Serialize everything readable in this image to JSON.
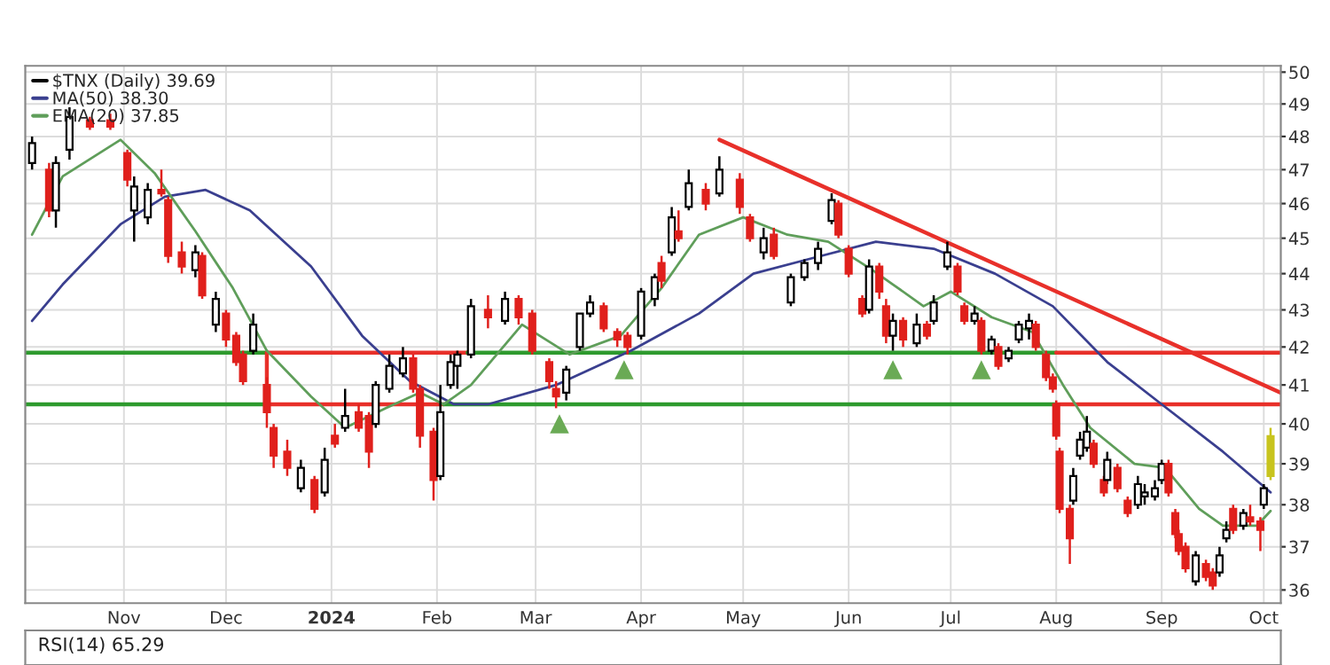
{
  "chart_data": [
    {
      "type": "candlestick",
      "log": "y",
      "grid": true,
      "legend": "top left",
      "xlim": [
        "2023-10-03",
        "2024-10-06"
      ],
      "ylim": [
        35.7,
        50.2
      ],
      "xticks": [
        {
          "value": "2023-11-01",
          "label": "Nov"
        },
        {
          "value": "2023-12-01",
          "label": "Dec"
        },
        {
          "value": "2024-01-01",
          "label": "2024"
        },
        {
          "value": "2024-02-01",
          "label": "Feb"
        },
        {
          "value": "2024-03-01",
          "label": "Mar"
        },
        {
          "value": "2024-04-01",
          "label": "Apr"
        },
        {
          "value": "2024-05-01",
          "label": "May"
        },
        {
          "value": "2024-06-01",
          "label": "Jun"
        },
        {
          "value": "2024-07-01",
          "label": "Jul"
        },
        {
          "value": "2024-08-01",
          "label": "Aug"
        },
        {
          "value": "2024-09-01",
          "label": "Sep"
        },
        {
          "value": "2024-10-01",
          "label": "Oct"
        }
      ],
      "yticks": [
        36,
        37,
        38,
        39,
        40,
        41,
        42,
        43,
        44,
        45,
        46,
        47,
        48,
        49,
        50
      ],
      "series": [
        {
          "name": "$TNX (Daily) 39.69",
          "type": "candlestick",
          "x": [
            "2023-10-05",
            "2023-10-10",
            "2023-10-12",
            "2023-10-16",
            "2023-10-22",
            "2023-10-28",
            "2023-11-02",
            "2023-11-04",
            "2023-11-08",
            "2023-11-12",
            "2023-11-14",
            "2023-11-18",
            "2023-11-22",
            "2023-11-24",
            "2023-11-28",
            "2023-12-01",
            "2023-12-04",
            "2023-12-06",
            "2023-12-09",
            "2023-12-13",
            "2023-12-15",
            "2023-12-19",
            "2023-12-23",
            "2023-12-27",
            "2023-12-30",
            "2024-01-02",
            "2024-01-05",
            "2024-01-09",
            "2024-01-12",
            "2024-01-14",
            "2024-01-18",
            "2024-01-22",
            "2024-01-25",
            "2024-01-27",
            "2024-01-31",
            "2024-02-02",
            "2024-02-05",
            "2024-02-07",
            "2024-02-11",
            "2024-02-16",
            "2024-02-21",
            "2024-02-25",
            "2024-02-29",
            "2024-03-05",
            "2024-03-07",
            "2024-03-10",
            "2024-03-14",
            "2024-03-17",
            "2024-03-21",
            "2024-03-25",
            "2024-03-28",
            "2024-04-01",
            "2024-04-05",
            "2024-04-07",
            "2024-04-10",
            "2024-04-12",
            "2024-04-15",
            "2024-04-20",
            "2024-04-24",
            "2024-04-30",
            "2024-05-03",
            "2024-05-07",
            "2024-05-10",
            "2024-05-15",
            "2024-05-19",
            "2024-05-23",
            "2024-05-27",
            "2024-05-29",
            "2024-06-01",
            "2024-06-05",
            "2024-06-07",
            "2024-06-10",
            "2024-06-12",
            "2024-06-14",
            "2024-06-17",
            "2024-06-21",
            "2024-06-24",
            "2024-06-26",
            "2024-06-30",
            "2024-07-03",
            "2024-07-05",
            "2024-07-08",
            "2024-07-10",
            "2024-07-13",
            "2024-07-15",
            "2024-07-18",
            "2024-07-21",
            "2024-07-24",
            "2024-07-26",
            "2024-07-29",
            "2024-07-31",
            "2024-08-01",
            "2024-08-02",
            "2024-08-05",
            "2024-08-06",
            "2024-08-08",
            "2024-08-10",
            "2024-08-12",
            "2024-08-15",
            "2024-08-16",
            "2024-08-19",
            "2024-08-22",
            "2024-08-25",
            "2024-08-27",
            "2024-08-30",
            "2024-09-01",
            "2024-09-03",
            "2024-09-05",
            "2024-09-06",
            "2024-09-08",
            "2024-09-11",
            "2024-09-14",
            "2024-09-16",
            "2024-09-18",
            "2024-09-20",
            "2024-09-22",
            "2024-09-25",
            "2024-09-27",
            "2024-09-30",
            "2024-10-01",
            "2024-10-03"
          ],
          "ohlc": [
            [
              47.2,
              48.0,
              47.0,
              47.8
            ],
            [
              47.0,
              47.2,
              45.6,
              45.8
            ],
            [
              45.8,
              47.4,
              45.3,
              47.2
            ],
            [
              47.6,
              48.9,
              47.3,
              48.6
            ],
            [
              48.5,
              48.6,
              48.2,
              48.3
            ],
            [
              48.5,
              48.7,
              48.2,
              48.3
            ],
            [
              47.5,
              47.6,
              46.5,
              46.7
            ],
            [
              45.8,
              46.8,
              44.9,
              46.5
            ],
            [
              45.6,
              46.6,
              45.4,
              46.4
            ],
            [
              46.4,
              47.0,
              46.2,
              46.3
            ],
            [
              46.1,
              46.2,
              44.3,
              44.5
            ],
            [
              44.6,
              44.9,
              44.0,
              44.2
            ],
            [
              44.1,
              44.8,
              43.9,
              44.6
            ],
            [
              44.5,
              44.6,
              43.3,
              43.4
            ],
            [
              42.6,
              43.5,
              42.4,
              43.3
            ],
            [
              42.9,
              43.0,
              42.0,
              42.2
            ],
            [
              42.3,
              42.4,
              41.5,
              41.6
            ],
            [
              41.8,
              41.9,
              41.0,
              41.1
            ],
            [
              41.9,
              42.9,
              41.8,
              42.6
            ],
            [
              41.0,
              41.2,
              39.9,
              40.3
            ],
            [
              39.9,
              40.0,
              38.9,
              39.2
            ],
            [
              39.3,
              39.6,
              38.7,
              38.9
            ],
            [
              38.4,
              39.1,
              38.3,
              38.9
            ],
            [
              38.6,
              38.7,
              37.8,
              37.9
            ],
            [
              38.3,
              39.4,
              38.2,
              39.1
            ],
            [
              39.7,
              40.0,
              39.4,
              39.5
            ],
            [
              39.9,
              40.9,
              39.8,
              40.2
            ],
            [
              40.3,
              40.5,
              39.8,
              39.9
            ],
            [
              40.2,
              40.3,
              38.9,
              39.3
            ],
            [
              40.0,
              41.1,
              39.9,
              41.0
            ],
            [
              40.9,
              41.8,
              40.8,
              41.5
            ],
            [
              41.3,
              42.0,
              41.2,
              41.7
            ],
            [
              41.7,
              41.8,
              40.8,
              40.9
            ],
            [
              40.9,
              41.0,
              39.4,
              39.7
            ],
            [
              39.8,
              39.9,
              38.1,
              38.6
            ],
            [
              38.7,
              41.0,
              38.6,
              40.3
            ],
            [
              41.0,
              41.8,
              40.9,
              41.6
            ],
            [
              41.5,
              41.9,
              40.9,
              41.8
            ],
            [
              41.8,
              43.3,
              41.7,
              43.1
            ],
            [
              43.0,
              43.4,
              42.5,
              42.8
            ],
            [
              42.7,
              43.5,
              42.6,
              43.3
            ],
            [
              43.3,
              43.4,
              42.6,
              42.8
            ],
            [
              42.9,
              43.0,
              41.8,
              41.9
            ],
            [
              41.6,
              41.7,
              40.9,
              41.1
            ],
            [
              40.9,
              41.1,
              40.4,
              40.7
            ],
            [
              40.8,
              41.5,
              40.6,
              41.4
            ],
            [
              42.0,
              42.9,
              41.9,
              42.9
            ],
            [
              42.9,
              43.4,
              42.8,
              43.2
            ],
            [
              43.1,
              43.2,
              42.4,
              42.5
            ],
            [
              42.4,
              42.5,
              42.0,
              42.2
            ],
            [
              42.3,
              42.4,
              41.8,
              42.0
            ],
            [
              42.3,
              43.6,
              42.2,
              43.5
            ],
            [
              43.3,
              44.0,
              43.1,
              43.9
            ],
            [
              44.3,
              44.5,
              43.6,
              43.8
            ],
            [
              44.6,
              45.9,
              44.5,
              45.6
            ],
            [
              45.2,
              45.8,
              44.9,
              45.0
            ],
            [
              45.9,
              47.0,
              45.8,
              46.6
            ],
            [
              46.4,
              46.6,
              45.8,
              46.0
            ],
            [
              46.3,
              47.4,
              46.2,
              47.0
            ],
            [
              46.7,
              46.9,
              45.7,
              45.9
            ],
            [
              45.6,
              45.7,
              44.9,
              45.0
            ],
            [
              44.6,
              45.3,
              44.4,
              45.0
            ],
            [
              45.1,
              45.3,
              44.4,
              44.5
            ],
            [
              43.2,
              44.0,
              43.1,
              43.9
            ],
            [
              43.9,
              44.4,
              43.8,
              44.3
            ],
            [
              44.3,
              44.9,
              44.1,
              44.7
            ],
            [
              45.5,
              46.3,
              45.4,
              46.1
            ],
            [
              46.0,
              46.1,
              45.0,
              45.1
            ],
            [
              44.7,
              44.8,
              43.9,
              44.0
            ],
            [
              43.3,
              43.4,
              42.8,
              42.9
            ],
            [
              43.0,
              44.4,
              42.9,
              44.2
            ],
            [
              44.2,
              44.3,
              43.3,
              43.5
            ],
            [
              43.1,
              43.3,
              42.1,
              42.3
            ],
            [
              42.3,
              42.9,
              41.9,
              42.7
            ],
            [
              42.7,
              42.8,
              42.0,
              42.2
            ],
            [
              42.1,
              42.9,
              42.0,
              42.6
            ],
            [
              42.6,
              42.7,
              42.2,
              42.3
            ],
            [
              42.7,
              43.4,
              42.6,
              43.2
            ],
            [
              44.2,
              44.9,
              44.1,
              44.6
            ],
            [
              44.2,
              44.3,
              43.4,
              43.5
            ],
            [
              43.1,
              43.2,
              42.6,
              42.7
            ],
            [
              42.7,
              43.1,
              42.6,
              42.9
            ],
            [
              42.7,
              42.8,
              41.8,
              41.9
            ],
            [
              41.9,
              42.3,
              41.8,
              42.2
            ],
            [
              42.0,
              42.1,
              41.4,
              41.5
            ],
            [
              41.7,
              42.0,
              41.6,
              41.9
            ],
            [
              42.2,
              42.7,
              42.1,
              42.6
            ],
            [
              42.5,
              42.9,
              42.2,
              42.7
            ],
            [
              42.6,
              42.7,
              41.9,
              42.0
            ],
            [
              41.8,
              41.9,
              41.1,
              41.2
            ],
            [
              41.2,
              41.3,
              40.8,
              40.9
            ],
            [
              40.5,
              40.6,
              39.6,
              39.7
            ],
            [
              39.3,
              39.4,
              37.8,
              37.9
            ],
            [
              37.9,
              38.0,
              36.6,
              37.2
            ],
            [
              38.1,
              38.9,
              38.0,
              38.7
            ],
            [
              39.2,
              39.8,
              39.1,
              39.6
            ],
            [
              39.4,
              40.2,
              39.3,
              39.8
            ],
            [
              39.5,
              39.6,
              38.9,
              39.0
            ],
            [
              38.6,
              38.7,
              38.2,
              38.3
            ],
            [
              38.6,
              39.3,
              38.5,
              39.1
            ],
            [
              38.9,
              39.0,
              38.3,
              38.4
            ],
            [
              38.1,
              38.2,
              37.7,
              37.8
            ],
            [
              38.0,
              38.7,
              37.9,
              38.5
            ],
            [
              38.2,
              38.5,
              38.0,
              38.3
            ],
            [
              38.2,
              38.6,
              38.1,
              38.4
            ],
            [
              38.6,
              39.1,
              38.5,
              39.0
            ],
            [
              39.0,
              39.1,
              38.2,
              38.3
            ],
            [
              37.8,
              37.9,
              37.2,
              37.3
            ],
            [
              37.3,
              37.4,
              36.8,
              36.9
            ],
            [
              37.0,
              37.1,
              36.4,
              36.5
            ],
            [
              36.2,
              36.9,
              36.1,
              36.8
            ],
            [
              36.6,
              36.7,
              36.2,
              36.3
            ],
            [
              36.4,
              36.5,
              36.0,
              36.1
            ],
            [
              36.4,
              37.0,
              36.3,
              36.8
            ],
            [
              37.2,
              37.6,
              37.1,
              37.4
            ],
            [
              37.9,
              38.0,
              37.3,
              37.4
            ],
            [
              37.5,
              37.9,
              37.4,
              37.8
            ],
            [
              37.7,
              38.0,
              37.5,
              37.6
            ],
            [
              37.6,
              37.7,
              36.9,
              37.4
            ],
            [
              38.0,
              38.5,
              37.9,
              38.4
            ],
            [
              38.7,
              39.9,
              38.6,
              39.69
            ]
          ],
          "colors": [
            "#000000",
            "#e0201c",
            "#000000",
            "#000000",
            "#e0201c",
            "#e0201c",
            "#e0201c",
            "#000000",
            "#000000",
            "#e0201c",
            "#e0201c",
            "#e0201c",
            "#000000",
            "#e0201c",
            "#000000",
            "#e0201c",
            "#e0201c",
            "#e0201c",
            "#000000",
            "#e0201c",
            "#e0201c",
            "#e0201c",
            "#000000",
            "#e0201c",
            "#000000",
            "#e0201c",
            "#000000",
            "#e0201c",
            "#e0201c",
            "#000000",
            "#000000",
            "#000000",
            "#e0201c",
            "#e0201c",
            "#e0201c",
            "#000000",
            "#000000",
            "#000000",
            "#000000",
            "#e0201c",
            "#000000",
            "#e0201c",
            "#e0201c",
            "#e0201c",
            "#e0201c",
            "#000000",
            "#000000",
            "#000000",
            "#e0201c",
            "#e0201c",
            "#e0201c",
            "#000000",
            "#000000",
            "#e0201c",
            "#000000",
            "#e0201c",
            "#000000",
            "#e0201c",
            "#000000",
            "#e0201c",
            "#e0201c",
            "#000000",
            "#e0201c",
            "#000000",
            "#000000",
            "#000000",
            "#000000",
            "#e0201c",
            "#e0201c",
            "#e0201c",
            "#000000",
            "#e0201c",
            "#e0201c",
            "#000000",
            "#e0201c",
            "#000000",
            "#e0201c",
            "#000000",
            "#000000",
            "#e0201c",
            "#e0201c",
            "#000000",
            "#e0201c",
            "#000000",
            "#e0201c",
            "#000000",
            "#000000",
            "#000000",
            "#e0201c",
            "#e0201c",
            "#e0201c",
            "#e0201c",
            "#e0201c",
            "#e0201c",
            "#000000",
            "#000000",
            "#000000",
            "#e0201c",
            "#e0201c",
            "#000000",
            "#e0201c",
            "#e0201c",
            "#000000",
            "#000000",
            "#000000",
            "#000000",
            "#e0201c",
            "#e0201c",
            "#e0201c",
            "#e0201c",
            "#000000",
            "#e0201c",
            "#e0201c",
            "#000000",
            "#000000",
            "#e0201c",
            "#000000",
            "#e0201c",
            "#e0201c",
            "#000000",
            "#c8c41e"
          ]
        },
        {
          "name": "MA(50) 38.30",
          "type": "line",
          "color": "#3a3f8f",
          "x": [
            "2023-10-05",
            "2023-10-14",
            "2023-10-31",
            "2023-11-13",
            "2023-11-25",
            "2023-12-08",
            "2023-12-26",
            "2024-01-10",
            "2024-01-24",
            "2024-02-06",
            "2024-02-16",
            "2024-03-07",
            "2024-03-29",
            "2024-04-18",
            "2024-05-04",
            "2024-05-20",
            "2024-06-09",
            "2024-06-26",
            "2024-07-14",
            "2024-07-31",
            "2024-08-16",
            "2024-09-01",
            "2024-09-19",
            "2024-10-03"
          ],
          "values": [
            42.7,
            43.7,
            45.4,
            46.2,
            46.4,
            45.8,
            44.2,
            42.3,
            41.1,
            40.5,
            40.5,
            41.0,
            41.9,
            42.9,
            44.0,
            44.4,
            44.9,
            44.7,
            44.0,
            43.1,
            41.6,
            40.5,
            39.3,
            38.3
          ]
        },
        {
          "name": "EMA(20) 37.85",
          "type": "line",
          "color": "#5f9e5a",
          "x": [
            "2023-10-05",
            "2023-10-14",
            "2023-10-31",
            "2023-11-10",
            "2023-11-22",
            "2023-12-03",
            "2023-12-13",
            "2023-12-26",
            "2024-01-05",
            "2024-01-17",
            "2024-01-27",
            "2024-02-03",
            "2024-02-11",
            "2024-02-26",
            "2024-03-11",
            "2024-03-26",
            "2024-04-07",
            "2024-04-18",
            "2024-05-01",
            "2024-05-14",
            "2024-05-26",
            "2024-06-08",
            "2024-06-14",
            "2024-06-23",
            "2024-07-01",
            "2024-07-13",
            "2024-07-25",
            "2024-08-03",
            "2024-08-11",
            "2024-08-24",
            "2024-09-02",
            "2024-09-12",
            "2024-09-19",
            "2024-09-29",
            "2024-10-03"
          ],
          "values": [
            45.1,
            46.8,
            47.9,
            46.9,
            45.2,
            43.6,
            41.9,
            40.7,
            39.9,
            40.4,
            40.8,
            40.5,
            41.0,
            42.6,
            41.8,
            42.3,
            43.6,
            45.1,
            45.6,
            45.1,
            44.9,
            44.1,
            43.7,
            43.1,
            43.5,
            42.8,
            42.4,
            41.0,
            39.9,
            39.0,
            38.9,
            37.9,
            37.5,
            37.5,
            37.85
          ]
        },
        {
          "type": "line",
          "color": "#e8302a",
          "x": [
            "2024-04-24",
            "2024-10-06"
          ],
          "values": [
            47.9,
            40.8
          ]
        },
        {
          "type": "line",
          "color": "#2e9a2e",
          "x": [
            "2023-10-03",
            "2023-12-13"
          ],
          "values": [
            41.85,
            41.85
          ]
        },
        {
          "type": "line",
          "color": "#2e9a2e",
          "x": [
            "2023-10-03",
            "2023-12-13"
          ],
          "values": [
            40.5,
            40.5
          ]
        },
        {
          "type": "line",
          "color": "#e8302a",
          "x": [
            "2023-12-13",
            "2024-02-10"
          ],
          "values": [
            41.85,
            41.85
          ]
        },
        {
          "type": "line",
          "color": "#e8302a",
          "x": [
            "2023-12-13",
            "2024-02-03"
          ],
          "values": [
            40.5,
            40.5
          ]
        },
        {
          "type": "line",
          "color": "#e8302a",
          "x": [
            "2023-12-13",
            "2023-12-13"
          ],
          "values": [
            41.85,
            40.5
          ]
        },
        {
          "type": "line",
          "color": "#2e9a2e",
          "x": [
            "2024-02-10",
            "2024-08-01"
          ],
          "values": [
            41.85,
            41.85
          ]
        },
        {
          "type": "line",
          "color": "#2e9a2e",
          "x": [
            "2024-02-03",
            "2024-08-01"
          ],
          "values": [
            40.5,
            40.5
          ]
        },
        {
          "type": "line",
          "color": "#e8302a",
          "x": [
            "2024-08-01",
            "2024-10-06"
          ],
          "values": [
            41.85,
            41.85
          ]
        },
        {
          "type": "line",
          "color": "#e8302a",
          "x": [
            "2024-08-01",
            "2024-10-06"
          ],
          "values": [
            40.5,
            40.5
          ]
        },
        {
          "type": "scatter",
          "marker": "triangle",
          "color": "#6aaa55",
          "x": [
            "2024-03-08",
            "2024-03-27",
            "2024-06-14",
            "2024-07-10"
          ],
          "values": [
            40.0,
            41.4,
            41.4,
            41.4
          ]
        }
      ]
    },
    {
      "type": "other",
      "title": "RSI(14) 65.29"
    }
  ]
}
